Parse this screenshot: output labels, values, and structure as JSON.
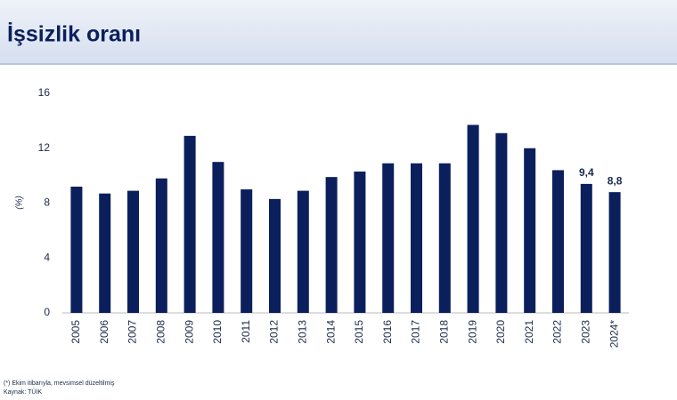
{
  "chart_data": {
    "type": "bar",
    "title": "İşsizlik oranı",
    "y_label": "(%)",
    "categories": [
      "2005",
      "2006",
      "2007",
      "2008",
      "2009",
      "2010",
      "2011",
      "2012",
      "2013",
      "2014",
      "2015",
      "2016",
      "2017",
      "2018",
      "2019",
      "2020",
      "2021",
      "2022",
      "2023",
      "2024*"
    ],
    "values": [
      9.2,
      8.7,
      8.9,
      9.8,
      12.9,
      11.0,
      9.0,
      8.3,
      8.9,
      9.9,
      10.3,
      10.9,
      10.9,
      10.9,
      13.7,
      13.1,
      12.0,
      10.4,
      9.4,
      8.8
    ],
    "value_labels": [
      null,
      null,
      null,
      null,
      null,
      null,
      null,
      null,
      null,
      null,
      null,
      null,
      null,
      null,
      null,
      null,
      null,
      null,
      "9,4",
      "8,8"
    ],
    "color": "#0b1f5c",
    "ylim": [
      0,
      16
    ],
    "yticks": [
      0,
      4,
      8,
      12,
      16
    ],
    "grid": false,
    "footnotes": [
      "(*) Ekim itibarıyla, mevsimsel düzeltilmiş",
      "Kaynak: TÜİK"
    ]
  }
}
